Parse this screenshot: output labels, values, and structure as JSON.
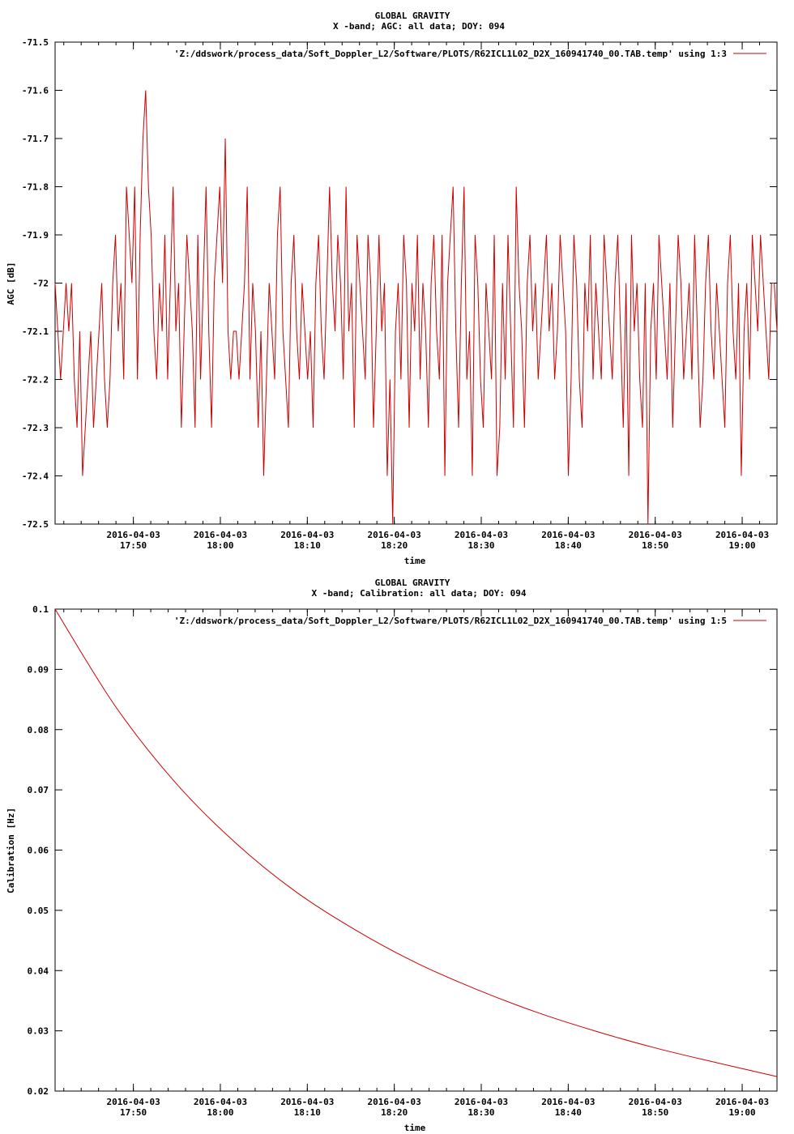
{
  "charts": [
    {
      "id": "agc",
      "title_line1": "GLOBAL GRAVITY",
      "title_line2": "X -band; AGC: all data; DOY: 094",
      "legend_label": "'Z:/ddswork/process_data/Soft_Doppler_L2/Software/PLOTS/R62ICL1L02_D2X_160941740_00.TAB.temp' using 1:3",
      "series_color": "#cc0000",
      "xlabel": "time",
      "ylabel": "AGC [dB]",
      "x_tick_date": "2016-04-03",
      "x_tick_times": [
        "17:50",
        "18:00",
        "18:10",
        "18:20",
        "18:30",
        "18:40",
        "18:50",
        "19:00"
      ],
      "y_tick_labels": [
        "-71.5",
        "-71.6",
        "-71.7",
        "-71.8",
        "-71.9",
        "-72",
        "-72.1",
        "-72.2",
        "-72.3",
        "-72.4",
        "-72.5"
      ]
    },
    {
      "id": "calibration",
      "title_line1": "GLOBAL GRAVITY",
      "title_line2": "X -band; Calibration: all data; DOY: 094",
      "legend_label": "'Z:/ddswork/process_data/Soft_Doppler_L2/Software/PLOTS/R62ICL1L02_D2X_160941740_00.TAB.temp' using 1:5",
      "series_color": "#cc0000",
      "xlabel": "time",
      "ylabel": "Calibration [Hz]",
      "x_tick_date": "2016-04-03",
      "x_tick_times": [
        "17:50",
        "18:00",
        "18:10",
        "18:20",
        "18:30",
        "18:40",
        "18:50",
        "19:00"
      ],
      "y_tick_labels": [
        "0.1",
        "0.09",
        "0.08",
        "0.07",
        "0.06",
        "0.05",
        "0.04",
        "0.03",
        "0.02"
      ]
    }
  ],
  "chart_data": [
    {
      "type": "line",
      "x_start": "2016-04-03 17:41",
      "x_end": "2016-04-03 19:04",
      "xlim": [
        "2016-04-03 17:41",
        "2016-04-03 19:04"
      ],
      "ylim": [
        -72.5,
        -71.5
      ],
      "y_ticks": [
        -71.5,
        -71.6,
        -71.7,
        -71.8,
        -71.9,
        -72.0,
        -72.1,
        -72.2,
        -72.3,
        -72.4,
        -72.5
      ],
      "x_ticks": [
        "2016-04-03 17:50",
        "2016-04-03 18:00",
        "2016-04-03 18:10",
        "2016-04-03 18:20",
        "2016-04-03 18:30",
        "2016-04-03 18:40",
        "2016-04-03 18:50",
        "2016-04-03 19:00"
      ],
      "grid": false,
      "legend": "top-right",
      "y": [
        -72.0,
        -72.1,
        -72.2,
        -72.1,
        -72.0,
        -72.1,
        -72.0,
        -72.2,
        -72.3,
        -72.1,
        -72.4,
        -72.3,
        -72.2,
        -72.1,
        -72.3,
        -72.2,
        -72.1,
        -72.0,
        -72.2,
        -72.3,
        -72.2,
        -72.0,
        -71.9,
        -72.1,
        -72.0,
        -72.2,
        -71.8,
        -71.9,
        -72.0,
        -71.8,
        -72.2,
        -71.9,
        -71.7,
        -71.6,
        -71.8,
        -71.9,
        -72.1,
        -72.2,
        -72.0,
        -72.1,
        -71.9,
        -72.2,
        -72.0,
        -71.8,
        -72.1,
        -72.0,
        -72.3,
        -72.1,
        -71.9,
        -72.0,
        -72.1,
        -72.3,
        -71.9,
        -72.2,
        -72.0,
        -71.8,
        -72.1,
        -72.3,
        -72.0,
        -71.9,
        -71.8,
        -72.0,
        -71.7,
        -72.1,
        -72.2,
        -72.1,
        -72.1,
        -72.2,
        -72.1,
        -72.0,
        -71.8,
        -72.2,
        -72.0,
        -72.1,
        -72.3,
        -72.1,
        -72.4,
        -72.2,
        -72.0,
        -72.1,
        -72.2,
        -71.9,
        -71.8,
        -72.1,
        -72.2,
        -72.3,
        -72.0,
        -71.9,
        -72.1,
        -72.2,
        -72.0,
        -72.1,
        -72.2,
        -72.1,
        -72.3,
        -72.0,
        -71.9,
        -72.1,
        -72.2,
        -72.0,
        -71.8,
        -72.0,
        -72.1,
        -71.9,
        -72.0,
        -72.2,
        -71.8,
        -72.1,
        -72.0,
        -72.3,
        -71.9,
        -72.0,
        -72.1,
        -72.2,
        -71.9,
        -72.0,
        -72.3,
        -72.1,
        -71.9,
        -72.1,
        -72.0,
        -72.4,
        -72.2,
        -72.5,
        -72.1,
        -72.0,
        -72.2,
        -71.9,
        -72.0,
        -72.3,
        -72.0,
        -72.1,
        -71.9,
        -72.2,
        -72.0,
        -72.1,
        -72.3,
        -72.0,
        -71.9,
        -72.1,
        -72.2,
        -71.9,
        -72.4,
        -72.0,
        -71.9,
        -71.8,
        -72.1,
        -72.3,
        -72.0,
        -71.8,
        -72.2,
        -72.1,
        -72.4,
        -71.9,
        -72.0,
        -72.2,
        -72.3,
        -72.0,
        -72.1,
        -72.2,
        -71.9,
        -72.4,
        -72.3,
        -72.0,
        -72.2,
        -71.9,
        -72.1,
        -72.3,
        -71.8,
        -72.0,
        -72.1,
        -72.3,
        -72.0,
        -71.9,
        -72.1,
        -72.0,
        -72.2,
        -72.1,
        -72.0,
        -71.9,
        -72.1,
        -72.0,
        -72.2,
        -72.1,
        -71.9,
        -72.0,
        -72.1,
        -72.4,
        -72.2,
        -71.9,
        -72.0,
        -72.2,
        -72.3,
        -72.0,
        -72.1,
        -71.9,
        -72.2,
        -72.0,
        -72.1,
        -72.2,
        -71.9,
        -72.0,
        -72.1,
        -72.2,
        -72.0,
        -71.9,
        -72.1,
        -72.3,
        -72.0,
        -72.4,
        -71.9,
        -72.1,
        -72.0,
        -72.2,
        -72.3,
        -72.0,
        -72.5,
        -72.1,
        -72.0,
        -72.2,
        -71.9,
        -72.0,
        -72.1,
        -72.2,
        -72.0,
        -72.3,
        -72.1,
        -71.9,
        -72.0,
        -72.2,
        -72.1,
        -72.0,
        -72.2,
        -71.9,
        -72.1,
        -72.3,
        -72.2,
        -72.0,
        -71.9,
        -72.1,
        -72.2,
        -72.0,
        -72.1,
        -72.2,
        -72.3,
        -72.0,
        -71.9,
        -72.1,
        -72.2,
        -72.0,
        -72.4,
        -72.1,
        -72.0,
        -72.2,
        -71.9,
        -72.0,
        -72.1,
        -71.9,
        -72.0,
        -72.1,
        -72.2,
        -72.0,
        -72.0,
        -72.1
      ]
    },
    {
      "type": "line",
      "x_start": "2016-04-03 17:41",
      "x_end": "2016-04-03 19:04",
      "xlim": [
        "2016-04-03 17:41",
        "2016-04-03 19:04"
      ],
      "ylim": [
        0.02,
        0.1
      ],
      "y_ticks": [
        0.1,
        0.09,
        0.08,
        0.07,
        0.06,
        0.05,
        0.04,
        0.03,
        0.02
      ],
      "x_ticks": [
        "2016-04-03 17:50",
        "2016-04-03 18:00",
        "2016-04-03 18:10",
        "2016-04-03 18:20",
        "2016-04-03 18:30",
        "2016-04-03 18:40",
        "2016-04-03 18:50",
        "2016-04-03 19:00"
      ],
      "grid": false,
      "legend": "top-right",
      "y": [
        0.1,
        0.0839,
        0.0712,
        0.0612,
        0.0531,
        0.0467,
        0.0413,
        0.0369,
        0.0331,
        0.0299,
        0.0271,
        0.0247,
        0.0224
      ]
    }
  ]
}
